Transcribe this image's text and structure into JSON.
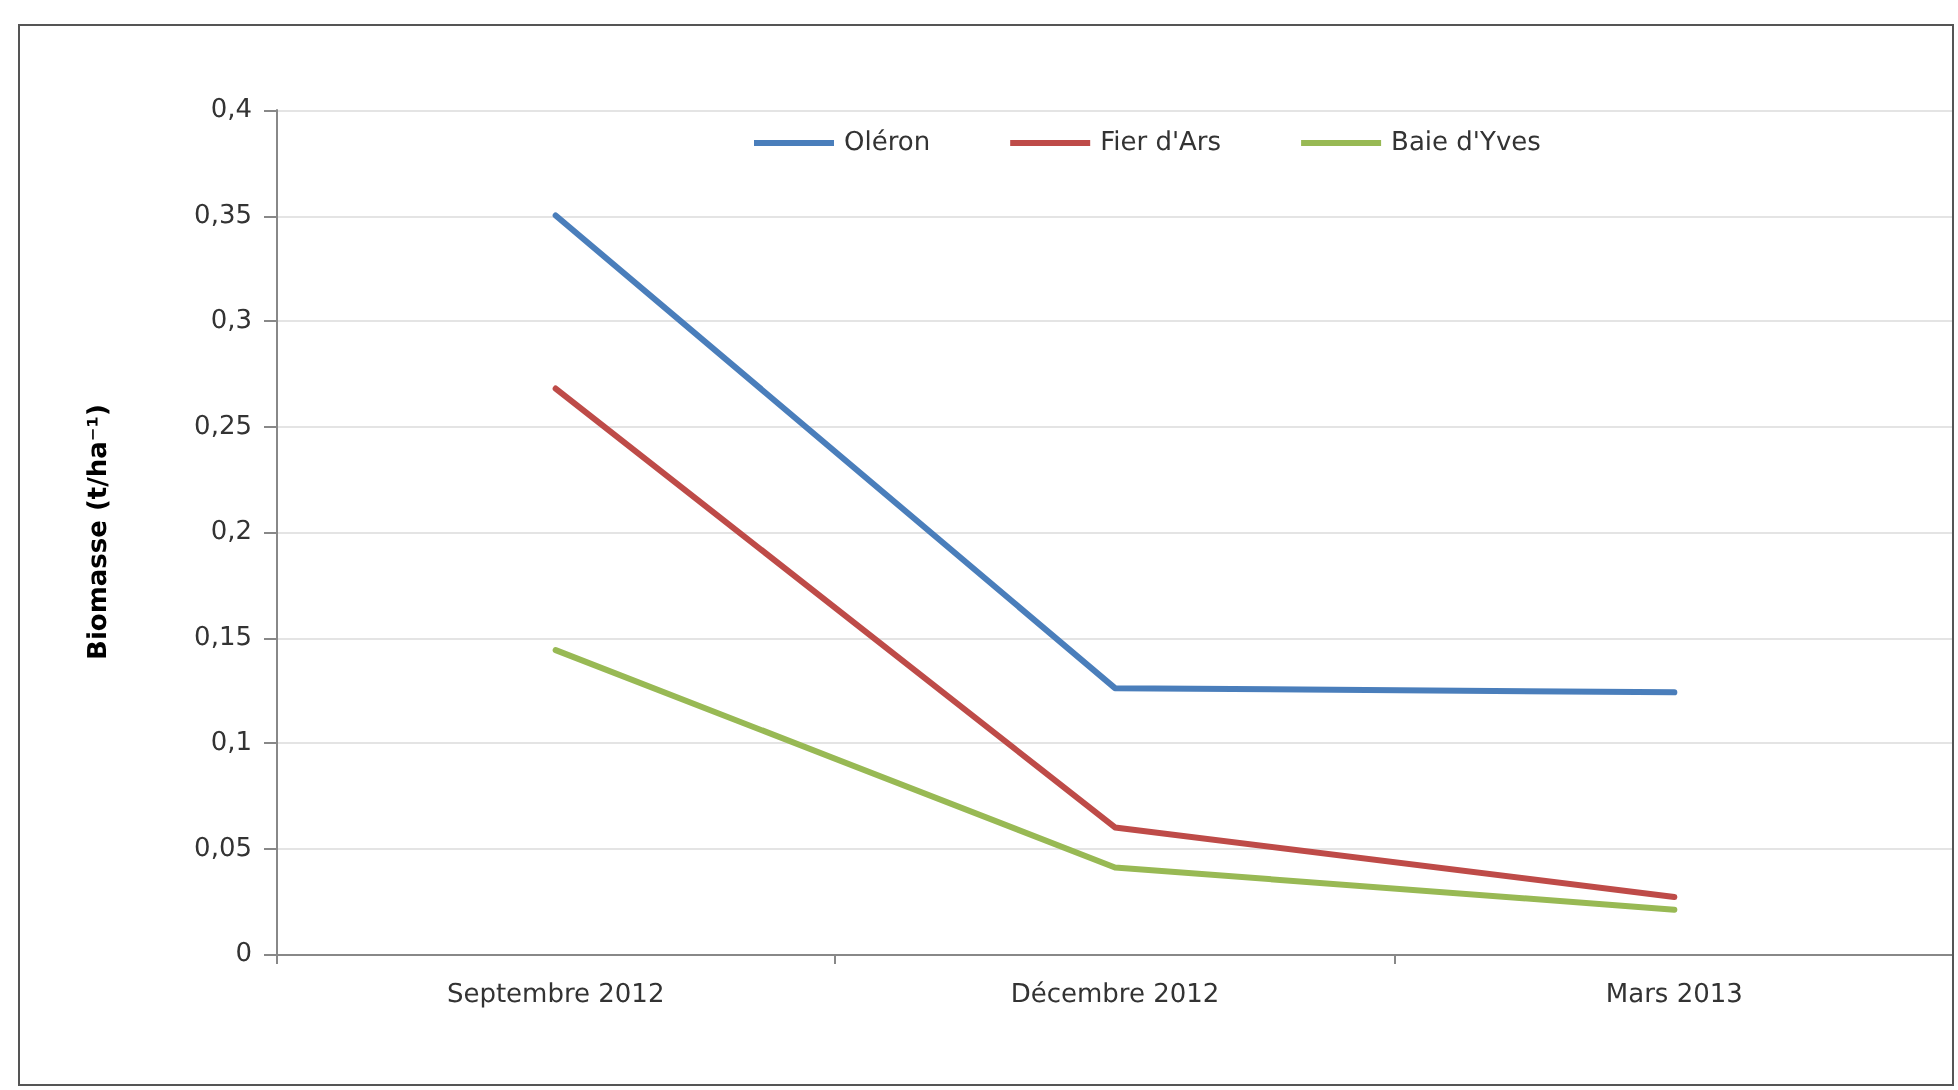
{
  "chart_data": {
    "type": "line",
    "ylabel": "Biomasse (t/ha⁻¹)",
    "categories": [
      "Septembre 2012",
      "Décembre 2012",
      "Mars 2013"
    ],
    "series": [
      {
        "name": "Oléron",
        "color": "#4a7ebb",
        "values": [
          0.35,
          0.126,
          0.124
        ]
      },
      {
        "name": "Fier d'Ars",
        "color": "#be4b48",
        "values": [
          0.268,
          0.06,
          0.027
        ]
      },
      {
        "name": "Baie d'Yves",
        "color": "#98b954",
        "values": [
          0.144,
          0.041,
          0.021
        ]
      }
    ],
    "ylim": [
      0,
      0.4
    ],
    "yticks": [
      0,
      {
        "value": 0.05,
        "label": "0,05"
      },
      {
        "value": 0.1,
        "label": "0,1"
      },
      {
        "value": 0.15,
        "label": "0,15"
      },
      {
        "value": 0.2,
        "label": "0,2"
      },
      {
        "value": 0.25,
        "label": "0,25"
      },
      {
        "value": 0.3,
        "label": "0,3"
      },
      {
        "value": 0.35,
        "label": "0,35"
      },
      {
        "value": 0.4,
        "label": "0,4"
      }
    ],
    "grid": "y",
    "legend": "top",
    "marker": "none",
    "line_style": "solid"
  }
}
